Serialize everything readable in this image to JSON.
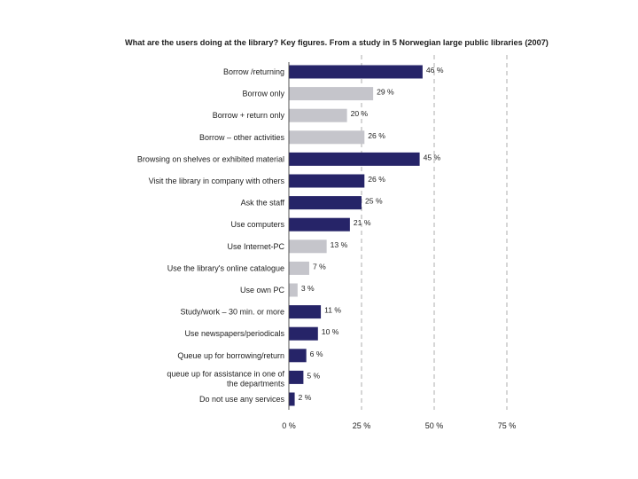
{
  "chart_data": {
    "type": "bar",
    "orientation": "horizontal",
    "title": "What are the users doing at the library? Key figures. From a study in 5 Norwegian large public libraries (2007)",
    "categories": [
      "Borrow /returning",
      "Borrow only",
      "Borrow + return only",
      "Borrow – other activities",
      "Browsing on shelves or exhibited material",
      "Visit the library in company with others",
      "Ask the staff",
      "Use computers",
      "Use Internet-PC",
      "Use the library's online catalogue",
      "Use own PC",
      "Study/work – 30 min. or more",
      "Use newspapers/periodicals",
      "Queue up for borrowing/return",
      "queue up for assistance in one of the departments",
      "Do not use any services"
    ],
    "values": [
      46,
      29,
      20,
      26,
      45,
      26,
      25,
      21,
      13,
      7,
      3,
      11,
      10,
      6,
      5,
      2
    ],
    "value_labels": [
      "46 %",
      "29 %",
      "20 %",
      "26 %",
      "45 %",
      "26 %",
      "25 %",
      "21 %",
      "13 %",
      "7 %",
      "3 %",
      "11 %",
      "10 %",
      "6 %",
      "5 %",
      "2 %"
    ],
    "bar_colors": [
      "#262468",
      "#c5c5cb",
      "#c5c5cb",
      "#c5c5cb",
      "#262468",
      "#262468",
      "#262468",
      "#262468",
      "#c5c5cb",
      "#c5c5cb",
      "#c5c5cb",
      "#262468",
      "#262468",
      "#262468",
      "#262468",
      "#262468"
    ],
    "xlim": [
      0,
      75
    ],
    "xticks": [
      0,
      25,
      50,
      75
    ],
    "xtick_labels": [
      "0 %",
      "25 %",
      "50 %",
      "75 %"
    ],
    "grid": true,
    "xlabel": "",
    "ylabel": ""
  }
}
